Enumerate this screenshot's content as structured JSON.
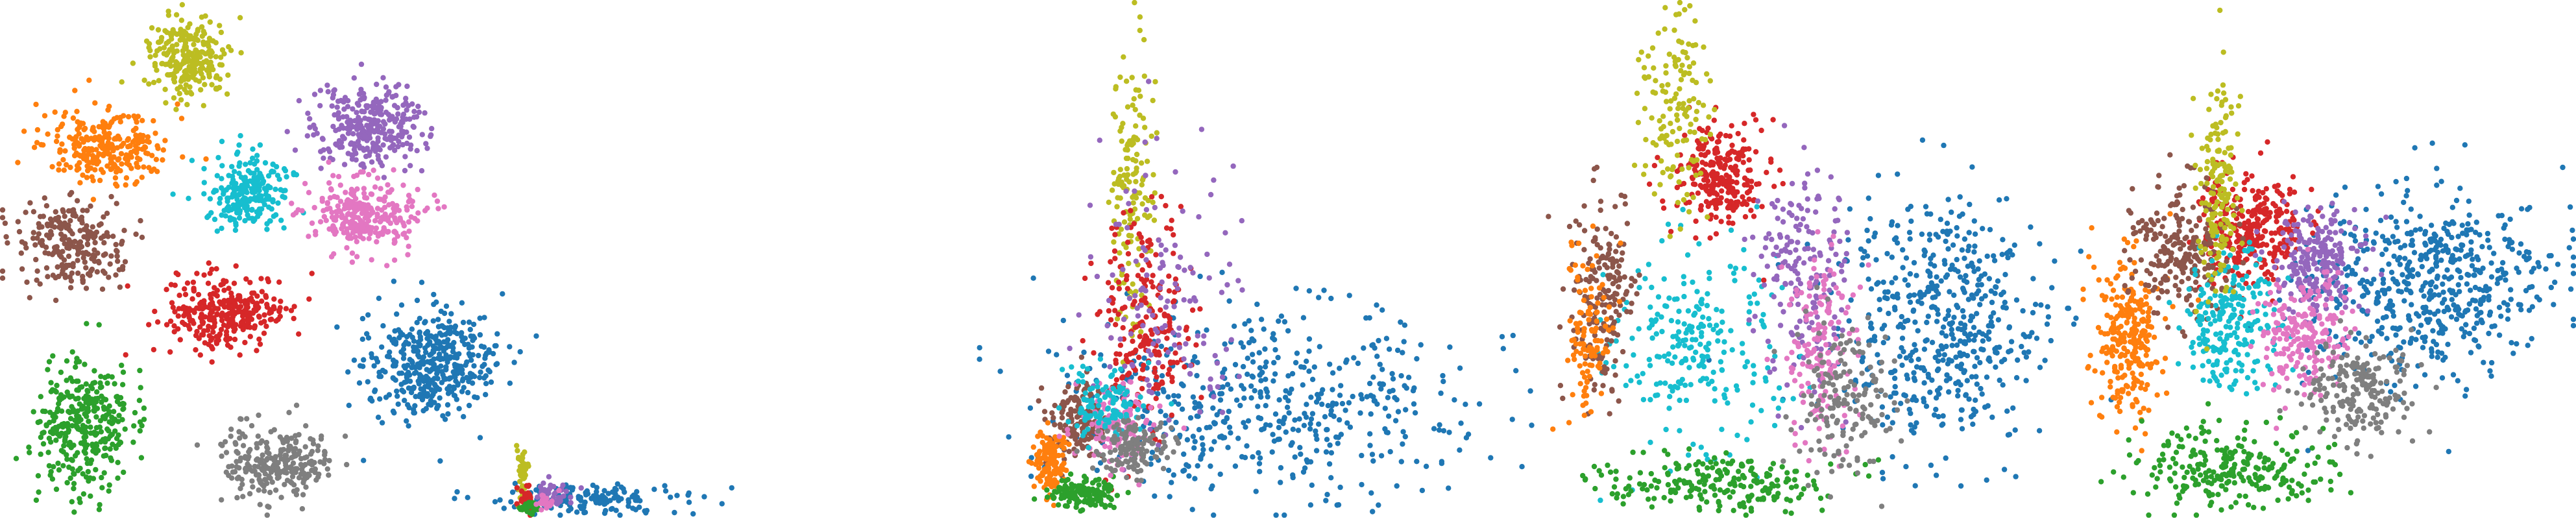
{
  "palette": {
    "blue": "#1f77b4",
    "orange": "#ff7f0e",
    "green": "#2ca02c",
    "red": "#d62728",
    "purple": "#9467bd",
    "brown": "#8c564b",
    "pink": "#e377c2",
    "gray": "#7f7f7f",
    "olive": "#bcbd22",
    "cyan": "#17becf"
  },
  "chart_data": [
    {
      "type": "scatter",
      "panel": "tsne-clusters",
      "title": "",
      "xlabel": "",
      "ylabel": "",
      "axes": false,
      "grid": false,
      "legend": "none",
      "xlim": [
        0,
        1000
      ],
      "ylim": [
        0,
        800
      ],
      "clusters": [
        {
          "color": "olive",
          "center": [
            290,
            90
          ],
          "spread": [
            70,
            75
          ],
          "n": 260
        },
        {
          "color": "orange",
          "center": [
            165,
            225
          ],
          "spread": [
            115,
            60
          ],
          "n": 280
        },
        {
          "color": "purple",
          "center": [
            565,
            195
          ],
          "spread": [
            100,
            80
          ],
          "n": 300
        },
        {
          "color": "cyan",
          "center": [
            385,
            295
          ],
          "spread": [
            75,
            65
          ],
          "n": 240
        },
        {
          "color": "pink",
          "center": [
            560,
            330
          ],
          "spread": [
            100,
            65
          ],
          "n": 280
        },
        {
          "color": "brown",
          "center": [
            105,
            375
          ],
          "spread": [
            95,
            80
          ],
          "n": 240
        },
        {
          "color": "red",
          "center": [
            350,
            485
          ],
          "spread": [
            110,
            70
          ],
          "n": 300
        },
        {
          "color": "blue",
          "center": [
            660,
            560
          ],
          "spread": [
            120,
            100
          ],
          "n": 420
        },
        {
          "color": "green",
          "center": [
            130,
            660
          ],
          "spread": [
            85,
            125
          ],
          "n": 340
        },
        {
          "color": "gray",
          "center": [
            430,
            710
          ],
          "spread": [
            105,
            65
          ],
          "n": 260
        }
      ]
    },
    {
      "type": "scatter",
      "panel": "collapsed-corner",
      "title": "",
      "xlabel": "",
      "ylabel": "",
      "axes": false,
      "grid": false,
      "legend": "none",
      "xlim": [
        0,
        1000
      ],
      "ylim": [
        0,
        800
      ],
      "clusters": [
        {
          "color": "blue",
          "center": [
            900,
            770
          ],
          "spread": [
            170,
            25
          ],
          "n": 160
        },
        {
          "color": "olive",
          "center": [
            805,
            730
          ],
          "spread": [
            10,
            60
          ],
          "n": 40
        },
        {
          "color": "red",
          "center": [
            812,
            770
          ],
          "spread": [
            15,
            22
          ],
          "n": 40
        },
        {
          "color": "purple",
          "center": [
            850,
            760
          ],
          "spread": [
            40,
            25
          ],
          "n": 40
        },
        {
          "color": "green",
          "center": [
            815,
            780
          ],
          "spread": [
            15,
            15
          ],
          "n": 25
        },
        {
          "color": "pink",
          "center": [
            840,
            775
          ],
          "spread": [
            20,
            15
          ],
          "n": 25
        }
      ]
    },
    {
      "type": "scatter",
      "panel": "fan-embedding",
      "title": "",
      "xlabel": "",
      "ylabel": "",
      "axes": false,
      "grid": false,
      "legend": "none",
      "xlim": [
        0,
        1000
      ],
      "ylim": [
        0,
        800
      ],
      "clusters": [
        {
          "color": "blue",
          "center": [
            1950,
            620
          ],
          "spread": [
            380,
            170
          ],
          "n": 520
        },
        {
          "color": "olive",
          "center": [
            1745,
            300
          ],
          "spread": [
            40,
            260
          ],
          "n": 150
        },
        {
          "color": "red",
          "center": [
            1760,
            500
          ],
          "spread": [
            90,
            200
          ],
          "n": 220
        },
        {
          "color": "purple",
          "center": [
            1790,
            460
          ],
          "spread": [
            140,
            240
          ],
          "n": 140
        },
        {
          "color": "brown",
          "center": [
            1665,
            650
          ],
          "spread": [
            60,
            70
          ],
          "n": 150
        },
        {
          "color": "orange",
          "center": [
            1620,
            710
          ],
          "spread": [
            30,
            60
          ],
          "n": 140
        },
        {
          "color": "green",
          "center": [
            1670,
            760
          ],
          "spread": [
            60,
            25
          ],
          "n": 150
        },
        {
          "color": "pink",
          "center": [
            1720,
            650
          ],
          "spread": [
            70,
            70
          ],
          "n": 120
        },
        {
          "color": "cyan",
          "center": [
            1700,
            620
          ],
          "spread": [
            70,
            70
          ],
          "n": 110
        },
        {
          "color": "gray",
          "center": [
            1750,
            690
          ],
          "spread": [
            70,
            50
          ],
          "n": 130
        }
      ]
    },
    {
      "type": "scatter",
      "panel": "ring-embedding",
      "title": "",
      "xlabel": "",
      "ylabel": "",
      "axes": false,
      "grid": false,
      "legend": "none",
      "xlim": [
        0,
        1000
      ],
      "ylim": [
        0,
        800
      ],
      "clusters": [
        {
          "color": "blue",
          "center": [
            2990,
            500
          ],
          "spread": [
            190,
            230
          ],
          "n": 520
        },
        {
          "color": "cyan",
          "center": [
            2615,
            530
          ],
          "spread": [
            150,
            180
          ],
          "n": 240
        },
        {
          "color": "red",
          "center": [
            2650,
            270
          ],
          "spread": [
            85,
            90
          ],
          "n": 260
        },
        {
          "color": "olive",
          "center": [
            2580,
            170
          ],
          "spread": [
            60,
            180
          ],
          "n": 140
        },
        {
          "color": "purple",
          "center": [
            2780,
            430
          ],
          "spread": [
            80,
            220
          ],
          "n": 180
        },
        {
          "color": "pink",
          "center": [
            2810,
            540
          ],
          "spread": [
            70,
            180
          ],
          "n": 160
        },
        {
          "color": "green",
          "center": [
            2640,
            740
          ],
          "spread": [
            200,
            55
          ],
          "n": 220
        },
        {
          "color": "brown",
          "center": [
            2470,
            460
          ],
          "spread": [
            60,
            200
          ],
          "n": 180
        },
        {
          "color": "orange",
          "center": [
            2450,
            520
          ],
          "spread": [
            40,
            160
          ],
          "n": 110
        },
        {
          "color": "gray",
          "center": [
            2840,
            620
          ],
          "spread": [
            90,
            140
          ],
          "n": 160
        }
      ]
    },
    {
      "type": "scatter",
      "panel": "dome-embedding",
      "title": "",
      "xlabel": "",
      "ylabel": "",
      "axes": false,
      "grid": false,
      "legend": "none",
      "xlim": [
        0,
        1000
      ],
      "ylim": [
        0,
        800
      ],
      "clusters": [
        {
          "color": "blue",
          "center": [
            3740,
            440
          ],
          "spread": [
            220,
            170
          ],
          "n": 560
        },
        {
          "color": "red",
          "center": [
            3470,
            350
          ],
          "spread": [
            95,
            100
          ],
          "n": 300
        },
        {
          "color": "purple",
          "center": [
            3570,
            400
          ],
          "spread": [
            80,
            90
          ],
          "n": 220
        },
        {
          "color": "orange",
          "center": [
            3280,
            520
          ],
          "spread": [
            60,
            150
          ],
          "n": 260
        },
        {
          "color": "brown",
          "center": [
            3360,
            380
          ],
          "spread": [
            90,
            120
          ],
          "n": 240
        },
        {
          "color": "cyan",
          "center": [
            3440,
            500
          ],
          "spread": [
            90,
            120
          ],
          "n": 220
        },
        {
          "color": "pink",
          "center": [
            3550,
            520
          ],
          "spread": [
            80,
            110
          ],
          "n": 200
        },
        {
          "color": "green",
          "center": [
            3430,
            720
          ],
          "spread": [
            190,
            70
          ],
          "n": 260
        },
        {
          "color": "olive",
          "center": [
            3420,
            300
          ],
          "spread": [
            40,
            200
          ],
          "n": 160
        },
        {
          "color": "gray",
          "center": [
            3640,
            600
          ],
          "spread": [
            100,
            90
          ],
          "n": 200
        }
      ]
    }
  ]
}
